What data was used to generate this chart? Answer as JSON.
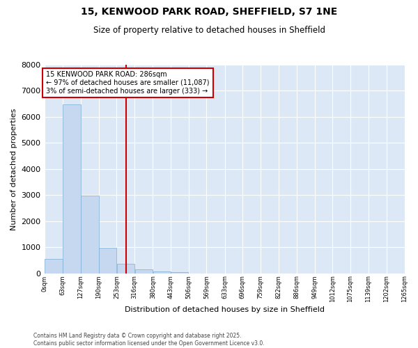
{
  "title_line1": "15, KENWOOD PARK ROAD, SHEFFIELD, S7 1NE",
  "title_line2": "Size of property relative to detached houses in Sheffield",
  "xlabel": "Distribution of detached houses by size in Sheffield",
  "ylabel": "Number of detached properties",
  "bar_color": "#c5d8f0",
  "bar_edge_color": "#7aadd4",
  "plot_bg_color": "#dce8f5",
  "fig_bg_color": "#ffffff",
  "grid_color": "#ffffff",
  "annotation_box_edgecolor": "#cc0000",
  "vline_color": "#cc0000",
  "bin_edges": [
    0,
    63,
    127,
    190,
    253,
    316,
    380,
    443,
    506,
    569,
    633,
    696,
    759,
    822,
    886,
    949,
    1012,
    1075,
    1139,
    1202,
    1265
  ],
  "bin_labels": [
    "0sqm",
    "63sqm",
    "127sqm",
    "190sqm",
    "253sqm",
    "316sqm",
    "380sqm",
    "443sqm",
    "506sqm",
    "569sqm",
    "633sqm",
    "696sqm",
    "759sqm",
    "822sqm",
    "886sqm",
    "949sqm",
    "1012sqm",
    "1075sqm",
    "1139sqm",
    "1202sqm",
    "1265sqm"
  ],
  "bar_heights": [
    560,
    6470,
    2980,
    970,
    370,
    150,
    75,
    45,
    0,
    0,
    0,
    0,
    0,
    0,
    0,
    0,
    0,
    0,
    0,
    0
  ],
  "property_size": 286,
  "property_label": "15 KENWOOD PARK ROAD: 286sqm",
  "annotation_line2": "← 97% of detached houses are smaller (11,087)",
  "annotation_line3": "3% of semi-detached houses are larger (333) →",
  "ylim": [
    0,
    8000
  ],
  "yticks": [
    0,
    1000,
    2000,
    3000,
    4000,
    5000,
    6000,
    7000,
    8000
  ],
  "footer_line1": "Contains HM Land Registry data © Crown copyright and database right 2025.",
  "footer_line2": "Contains public sector information licensed under the Open Government Licence v3.0."
}
